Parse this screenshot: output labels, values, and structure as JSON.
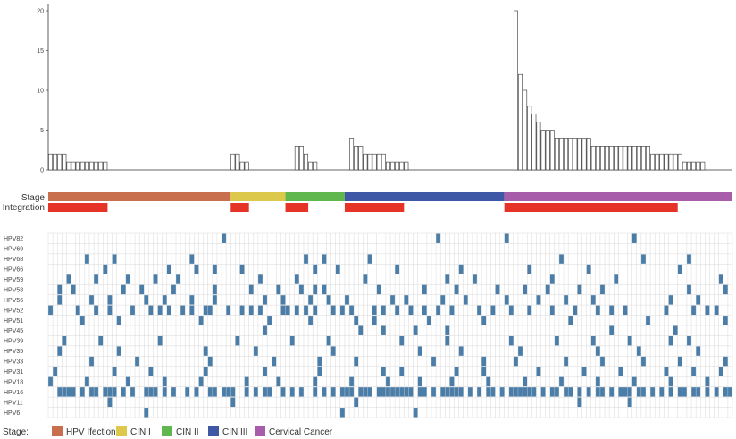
{
  "chart_data": {
    "type": "bar",
    "title": "",
    "xlabel": "",
    "ylabel": "",
    "ylim": [
      0,
      20
    ],
    "yticks": [
      0,
      5,
      10,
      15,
      20
    ],
    "n_samples": 150,
    "values": [
      2,
      2,
      2,
      2,
      1,
      1,
      1,
      1,
      1,
      1,
      1,
      1,
      1,
      0,
      0,
      0,
      0,
      0,
      0,
      0,
      0,
      0,
      0,
      0,
      0,
      0,
      0,
      0,
      0,
      0,
      0,
      0,
      0,
      0,
      0,
      0,
      0,
      0,
      0,
      0,
      2,
      2,
      1,
      1,
      0,
      0,
      0,
      0,
      0,
      0,
      0,
      0,
      0,
      0,
      3,
      3,
      2,
      1,
      1,
      0,
      0,
      0,
      0,
      0,
      0,
      0,
      4,
      3,
      3,
      2,
      2,
      2,
      2,
      2,
      1,
      1,
      1,
      1,
      1,
      0,
      0,
      0,
      0,
      0,
      0,
      0,
      0,
      0,
      0,
      0,
      0,
      0,
      0,
      0,
      0,
      0,
      0,
      0,
      0,
      0,
      0,
      0,
      20,
      12,
      10,
      8,
      7,
      6,
      5,
      5,
      5,
      4,
      4,
      4,
      4,
      4,
      4,
      4,
      4,
      3,
      3,
      3,
      3,
      3,
      3,
      3,
      3,
      3,
      3,
      3,
      3,
      3,
      2,
      2,
      2,
      2,
      2,
      2,
      2,
      1,
      1,
      1,
      1,
      1,
      0,
      0,
      0,
      0,
      0,
      0,
      0,
      0,
      0,
      0,
      0,
      0,
      0,
      0,
      0,
      0,
      0,
      0,
      0,
      0,
      0
    ],
    "stage_track_label": "Stage",
    "integration_track_label": "Integration",
    "stage_segments": [
      {
        "stage": "HPV Ifection",
        "start": 0,
        "end": 40
      },
      {
        "stage": "CIN I",
        "start": 40,
        "end": 52
      },
      {
        "stage": "CIN II",
        "start": 52,
        "end": 65
      },
      {
        "stage": "CIN III",
        "start": 65,
        "end": 100
      },
      {
        "stage": "Cervical Cancer",
        "start": 100,
        "end": 150
      }
    ],
    "integration_segments": [
      {
        "start": 0,
        "end": 13
      },
      {
        "start": 40,
        "end": 44
      },
      {
        "start": 52,
        "end": 57
      },
      {
        "start": 65,
        "end": 78
      },
      {
        "start": 100,
        "end": 138
      }
    ],
    "hpv_types": [
      "HPV82",
      "HPV69",
      "HPV68",
      "HPV66",
      "HPV59",
      "HPV58",
      "HPV56",
      "HPV52",
      "HPV51",
      "HPV45",
      "HPV39",
      "HPV35",
      "HPV33",
      "HPV31",
      "HPV18",
      "HPV16",
      "HPV11",
      "HPV6"
    ],
    "hpv_positive": {
      "HPV82": [
        38,
        85,
        100,
        128
      ],
      "HPV69": [],
      "HPV68": [
        8,
        14,
        31,
        56,
        60,
        70,
        112,
        130,
        140
      ],
      "HPV66": [
        12,
        26,
        32,
        36,
        42,
        58,
        63,
        76,
        90,
        105,
        118,
        138
      ],
      "HPV59": [
        4,
        10,
        17,
        23,
        28,
        46,
        54,
        69,
        87,
        93,
        110,
        124,
        147
      ],
      "HPV58": [
        2,
        5,
        16,
        20,
        27,
        36,
        44,
        50,
        55,
        58,
        60,
        72,
        82,
        89,
        98,
        104,
        109,
        116,
        121,
        140,
        148
      ],
      "HPV56": [
        2,
        9,
        13,
        21,
        25,
        31,
        36,
        47,
        51,
        57,
        61,
        65,
        75,
        78,
        86,
        91,
        100,
        107,
        113,
        119,
        136,
        142
      ],
      "HPV52": [
        0,
        6,
        10,
        13,
        18,
        22,
        24,
        26,
        29,
        31,
        34,
        35,
        39,
        42,
        44,
        46,
        51,
        52,
        54,
        56,
        58,
        62,
        64,
        66,
        71,
        73,
        76,
        79,
        82,
        85,
        88,
        94,
        97,
        101,
        105,
        110,
        115,
        120,
        123,
        126,
        135,
        141,
        144,
        146
      ],
      "HPV51": [
        7,
        15,
        33,
        48,
        57,
        67,
        71,
        83,
        95,
        114,
        131,
        148
      ],
      "HPV45": [
        47,
        68,
        73,
        80,
        87,
        123,
        137
      ],
      "HPV39": [
        3,
        11,
        24,
        41,
        53,
        61,
        77,
        87,
        101,
        111,
        119,
        127,
        136,
        140
      ],
      "HPV35": [
        2,
        15,
        34,
        45,
        62,
        81,
        90,
        103,
        120,
        129,
        142
      ],
      "HPV33": [
        9,
        19,
        35,
        49,
        59,
        67,
        84,
        95,
        102,
        113,
        121,
        130,
        138,
        148
      ],
      "HPV31": [
        1,
        14,
        22,
        34,
        47,
        59,
        73,
        77,
        89,
        95,
        107,
        117,
        125,
        135,
        141,
        147
      ],
      "HPV18": [
        0,
        8,
        17,
        25,
        33,
        43,
        50,
        58,
        66,
        74,
        81,
        88,
        96,
        104,
        112,
        120,
        128,
        136,
        144
      ],
      "HPV16": [
        2,
        3,
        4,
        5,
        7,
        9,
        10,
        12,
        13,
        14,
        16,
        18,
        21,
        21,
        22,
        23,
        25,
        27,
        30,
        32,
        35,
        36,
        38,
        39,
        40,
        43,
        45,
        47,
        48,
        51,
        53,
        55,
        58,
        60,
        62,
        64,
        65,
        66,
        68,
        69,
        70,
        72,
        73,
        74,
        75,
        76,
        77,
        78,
        79,
        81,
        82,
        84,
        86,
        87,
        88,
        89,
        90,
        92,
        94,
        96,
        97,
        99,
        101,
        102,
        103,
        104,
        105,
        106,
        108,
        110,
        111,
        113,
        114,
        116,
        118,
        120,
        121,
        123,
        125,
        126,
        127,
        129,
        130,
        132,
        134,
        136,
        138,
        139,
        141,
        142,
        144,
        146,
        148,
        149
      ],
      "HPV11": [
        13,
        40,
        67,
        116,
        127
      ],
      "HPV6": [
        21,
        64,
        80
      ]
    },
    "legend_title": "Stage:",
    "legend": [
      {
        "label": "HPV Ifection",
        "color": "#C8704E"
      },
      {
        "label": "CIN I",
        "color": "#DCC84B"
      },
      {
        "label": "CIN II",
        "color": "#60B74E"
      },
      {
        "label": "CIN III",
        "color": "#3E58A6"
      },
      {
        "label": "Cervical Cancer",
        "color": "#A85DAA"
      }
    ]
  },
  "colors": {
    "bar_fill": "#ffffff",
    "bar_stroke": "#333333",
    "integration": "#E53427",
    "hpv_positive": "#4A7DA8",
    "grid": "#cfcfcf"
  }
}
